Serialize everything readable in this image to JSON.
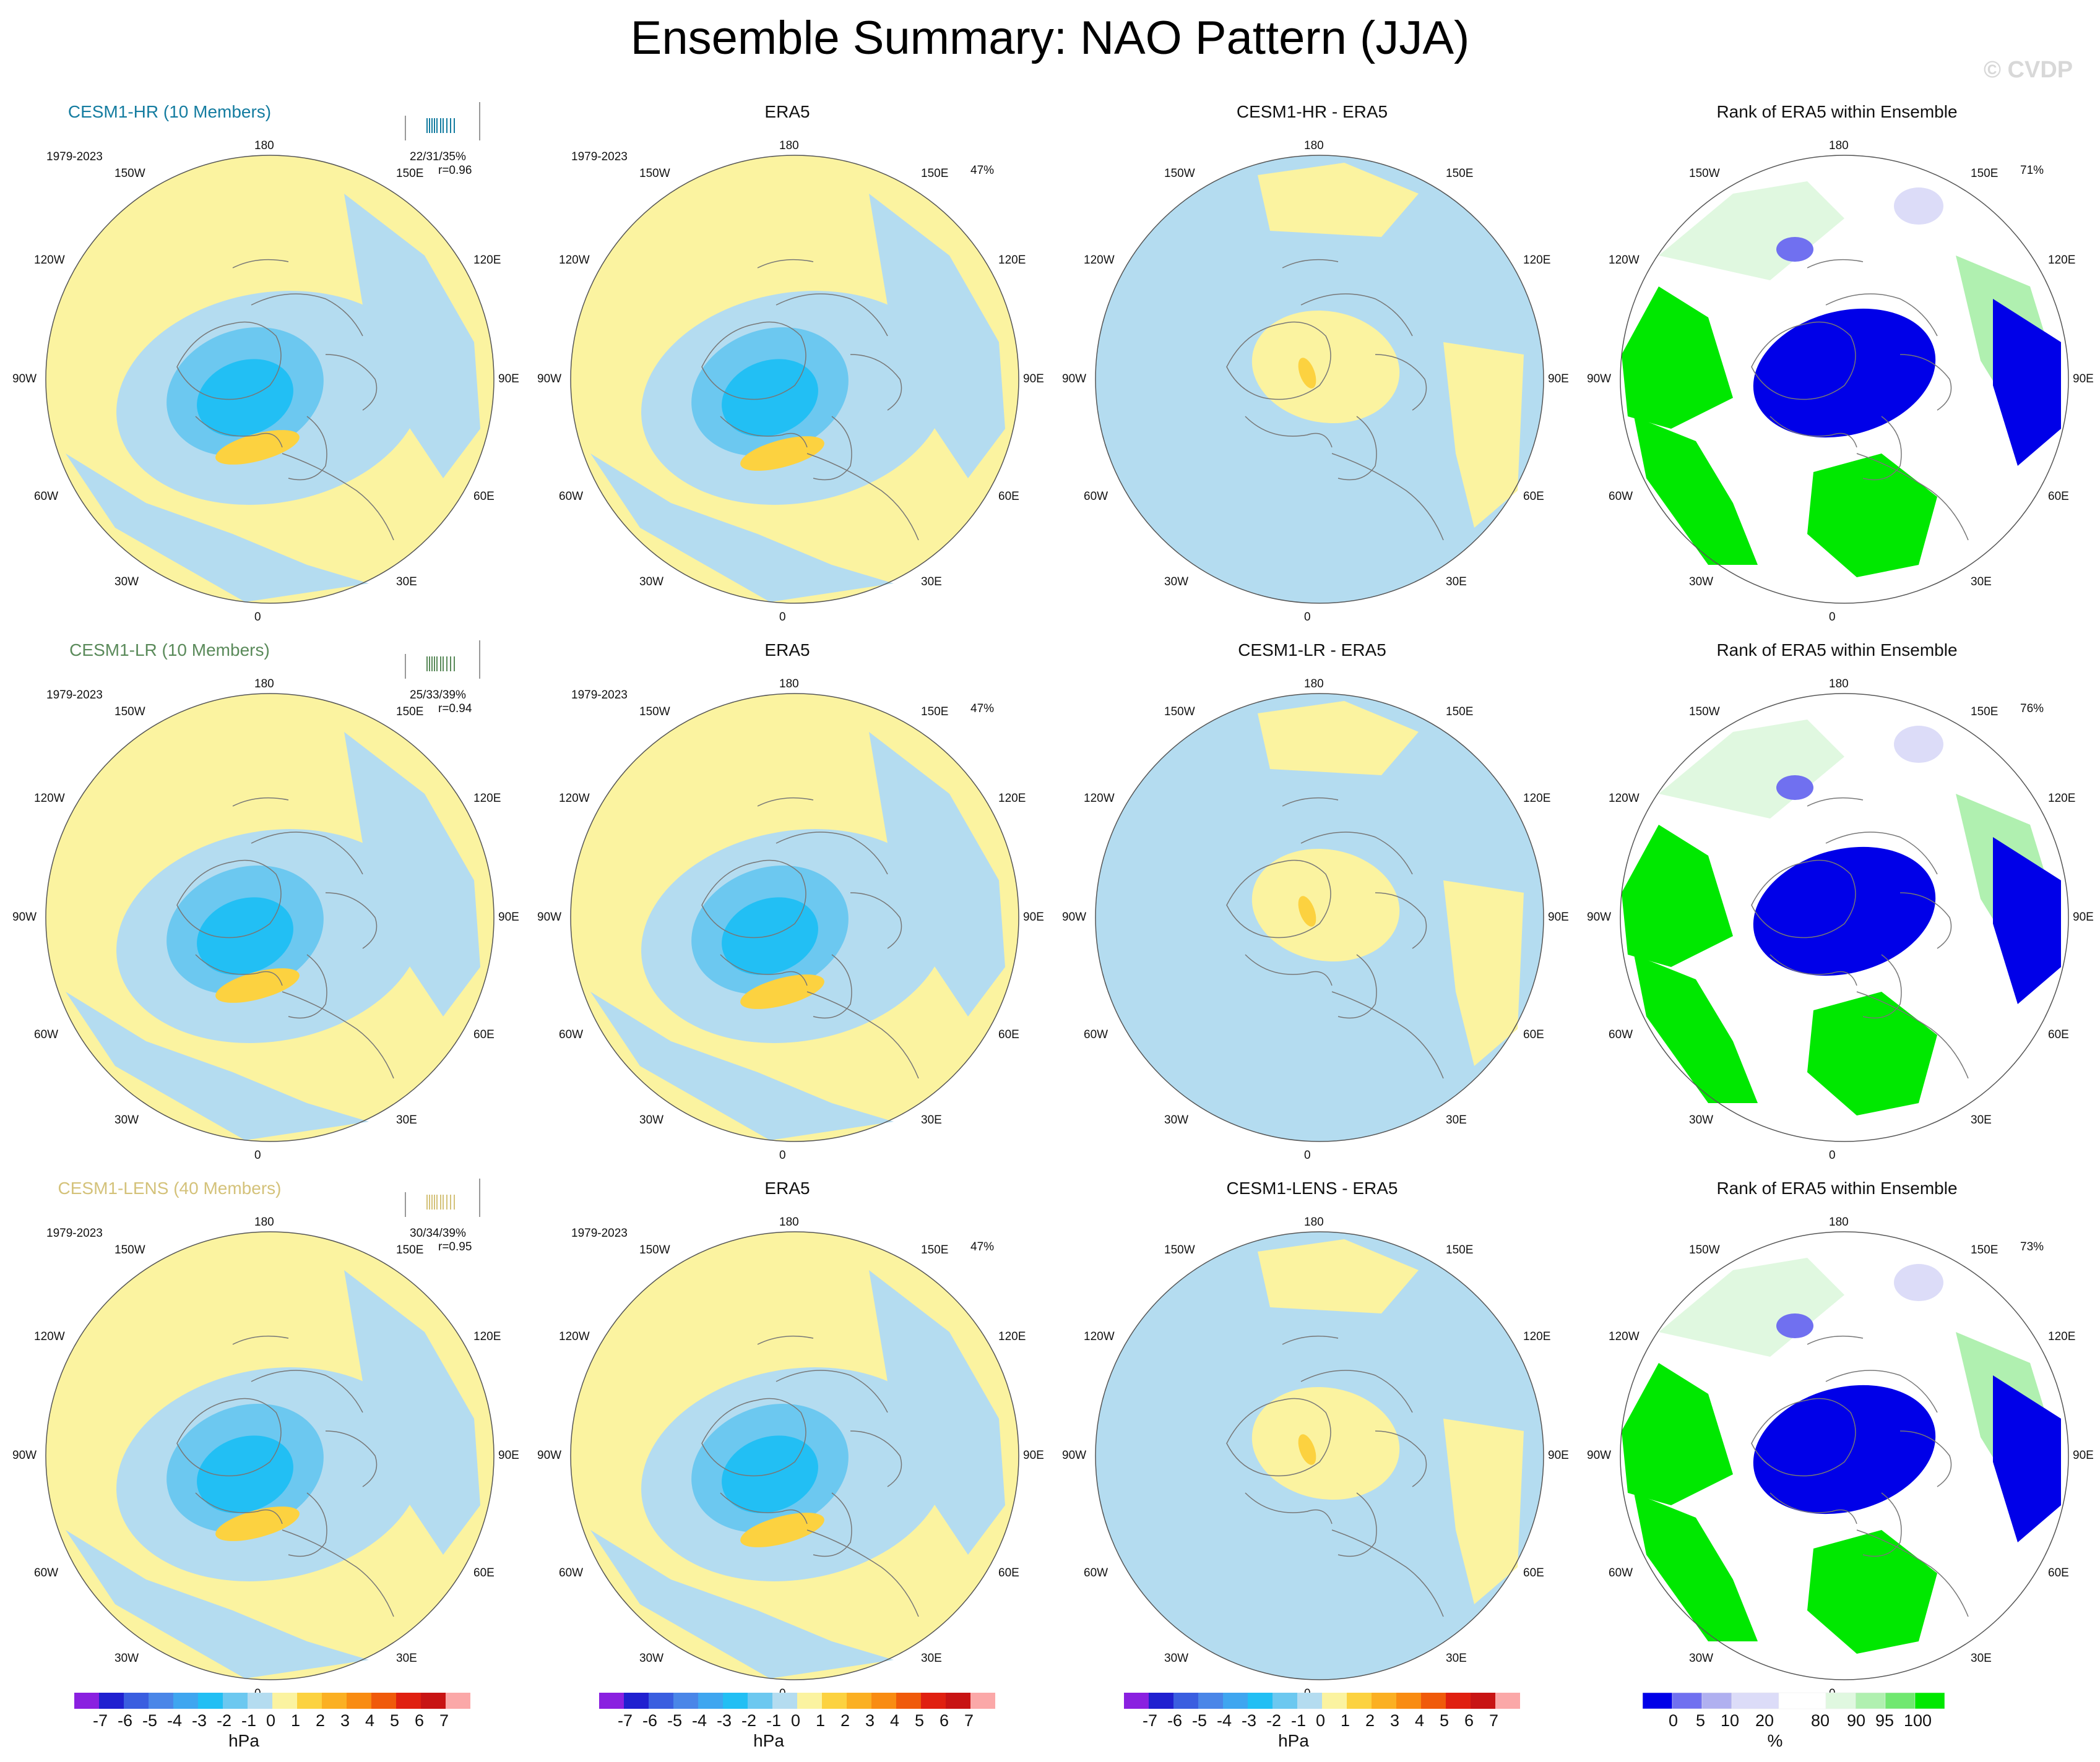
{
  "page_title": "Ensemble Summary: NAO Pattern (JJA)",
  "watermark": "© CVDP",
  "period": "1979-2023",
  "colors": {
    "pattern_scale": [
      "#8a20e0",
      "#2020d0",
      "#3a5ee0",
      "#4a86e8",
      "#3fa6f0",
      "#22bff4",
      "#6cc8f0",
      "#b4dcf0",
      "#fbf3a0",
      "#fcd240",
      "#fbb023",
      "#f98c12",
      "#f05a0a",
      "#e02010",
      "#c81414",
      "#fba8a8"
    ],
    "rank_scale": [
      "#0000e8",
      "#7070f0",
      "#b0b0f0",
      "#dcdcf8",
      "#ffffff",
      "#e0f8e0",
      "#b0f0b0",
      "#70e870",
      "#00e800"
    ],
    "member_ticks": [
      "#147ca0",
      "#5a8a5a",
      "#d4c27a"
    ]
  },
  "longitude_labels": {
    "north": "180",
    "south": "0",
    "nw": "150W",
    "ne": "150E",
    "wnw": "120W",
    "ene": "120E",
    "w": "90W",
    "e": "90E",
    "wsw": "60W",
    "ese": "60E",
    "sw": "30W",
    "se": "30E"
  },
  "rows": [
    {
      "model_title": "CESM1-HR (10 Members)",
      "model_color": "#147ca0",
      "stats": "22/31/35%",
      "corr": "r=0.96",
      "obs_title": "ERA5",
      "obs_pct": "47%",
      "diff_title": "CESM1-HR - ERA5",
      "rank_title": "Rank of ERA5 within Ensemble",
      "rank_pct": "71%"
    },
    {
      "model_title": "CESM1-LR (10 Members)",
      "model_color": "#5a8a5a",
      "stats": "25/33/39%",
      "corr": "r=0.94",
      "obs_title": "ERA5",
      "obs_pct": "47%",
      "diff_title": "CESM1-LR - ERA5",
      "rank_title": "Rank of ERA5 within Ensemble",
      "rank_pct": "76%"
    },
    {
      "model_title": "CESM1-LENS (40 Members)",
      "model_color": "#d4c27a",
      "stats": "30/34/39%",
      "corr": "r=0.95",
      "obs_title": "ERA5",
      "obs_pct": "47%",
      "diff_title": "CESM1-LENS - ERA5",
      "rank_title": "Rank of ERA5 within Ensemble",
      "rank_pct": "73%"
    }
  ],
  "colorbars": {
    "pattern_labels": [
      "-7",
      "-6",
      "-5",
      "-4",
      "-3",
      "-2",
      "-1",
      "0",
      "1",
      "2",
      "3",
      "4",
      "5",
      "6",
      "7"
    ],
    "pattern_unit": "hPa",
    "rank_labels": [
      "0",
      "5",
      "10",
      "20",
      "80",
      "90",
      "95",
      "100"
    ],
    "rank_unit": "%"
  },
  "chart_data": {
    "type": "heatmap",
    "title": "Ensemble Summary: NAO Pattern (JJA)",
    "projection": "polar stereographic, Northern Hemisphere",
    "pattern_units": "hPa",
    "pattern_levels": [
      -7,
      -6,
      -5,
      -4,
      -3,
      -2,
      -1,
      0,
      1,
      2,
      3,
      4,
      5,
      6,
      7
    ],
    "rank_levels_percent": [
      0,
      5,
      10,
      20,
      80,
      90,
      95,
      100
    ],
    "panels": [
      {
        "row": 1,
        "column": "model",
        "title": "CESM1-HR (10 Members)",
        "stats": "22/31/35%",
        "r": 0.96
      },
      {
        "row": 1,
        "column": "obs",
        "title": "ERA5",
        "pct_variance": 47
      },
      {
        "row": 1,
        "column": "diff",
        "title": "CESM1-HR - ERA5"
      },
      {
        "row": 1,
        "column": "rank",
        "title": "Rank of ERA5 within Ensemble",
        "pct": 71
      },
      {
        "row": 2,
        "column": "model",
        "title": "CESM1-LR (10 Members)",
        "stats": "25/33/39%",
        "r": 0.94
      },
      {
        "row": 2,
        "column": "obs",
        "title": "ERA5",
        "pct_variance": 47
      },
      {
        "row": 2,
        "column": "diff",
        "title": "CESM1-LR - ERA5"
      },
      {
        "row": 2,
        "column": "rank",
        "title": "Rank of ERA5 within Ensemble",
        "pct": 76
      },
      {
        "row": 3,
        "column": "model",
        "title": "CESM1-LENS (40 Members)",
        "stats": "30/34/39%",
        "r": 0.95
      },
      {
        "row": 3,
        "column": "obs",
        "title": "ERA5",
        "pct_variance": 47
      },
      {
        "row": 3,
        "column": "diff",
        "title": "CESM1-LENS - ERA5"
      },
      {
        "row": 3,
        "column": "rank",
        "title": "Rank of ERA5 within Ensemble",
        "pct": 73
      }
    ]
  }
}
